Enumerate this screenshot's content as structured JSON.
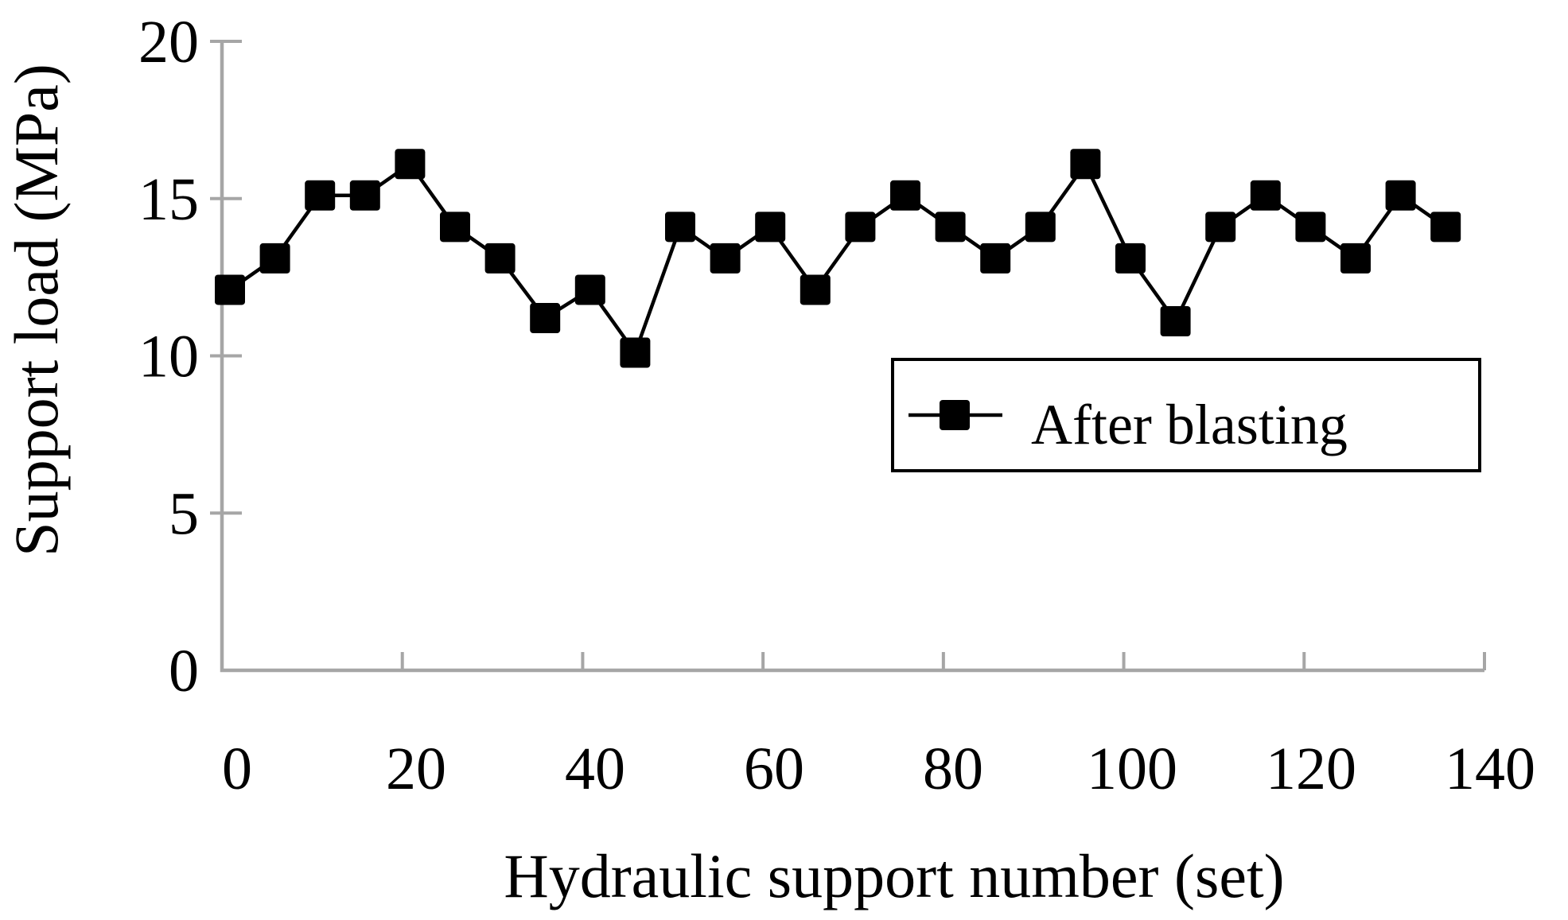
{
  "figure": {
    "background": "#ffffff"
  },
  "chart_data": {
    "type": "line",
    "title": "",
    "xlabel": "Hydraulic support number (set)",
    "ylabel": "Support load (MPa)",
    "x_ticks": [
      0,
      20,
      40,
      60,
      80,
      100,
      120,
      140
    ],
    "y_ticks": [
      0,
      5,
      10,
      15,
      20
    ],
    "xlim": [
      0,
      140
    ],
    "ylim": [
      0,
      20
    ],
    "grid": false,
    "marker": "square",
    "legend_position": "inside-right",
    "series": [
      {
        "name": "After blasting",
        "x": [
          0,
          5,
          10,
          15,
          20,
          25,
          30,
          35,
          40,
          45,
          50,
          55,
          60,
          65,
          70,
          75,
          80,
          85,
          90,
          95,
          100,
          105,
          110,
          115,
          120,
          125,
          130,
          135
        ],
        "values": [
          12.1,
          13.1,
          15.1,
          15.1,
          16.1,
          14.1,
          13.1,
          11.2,
          12.1,
          10.1,
          14.1,
          13.1,
          14.1,
          12.1,
          14.1,
          15.1,
          14.1,
          13.1,
          14.1,
          16.1,
          13.1,
          11.1,
          14.1,
          15.1,
          14.1,
          13.1,
          15.1,
          14.1
        ]
      }
    ],
    "colors": {
      "series": "#000000",
      "marker": "#000000",
      "axis": "#a6a6a6",
      "text": "#000000",
      "legend_border": "#000000",
      "background": "#ffffff"
    }
  }
}
